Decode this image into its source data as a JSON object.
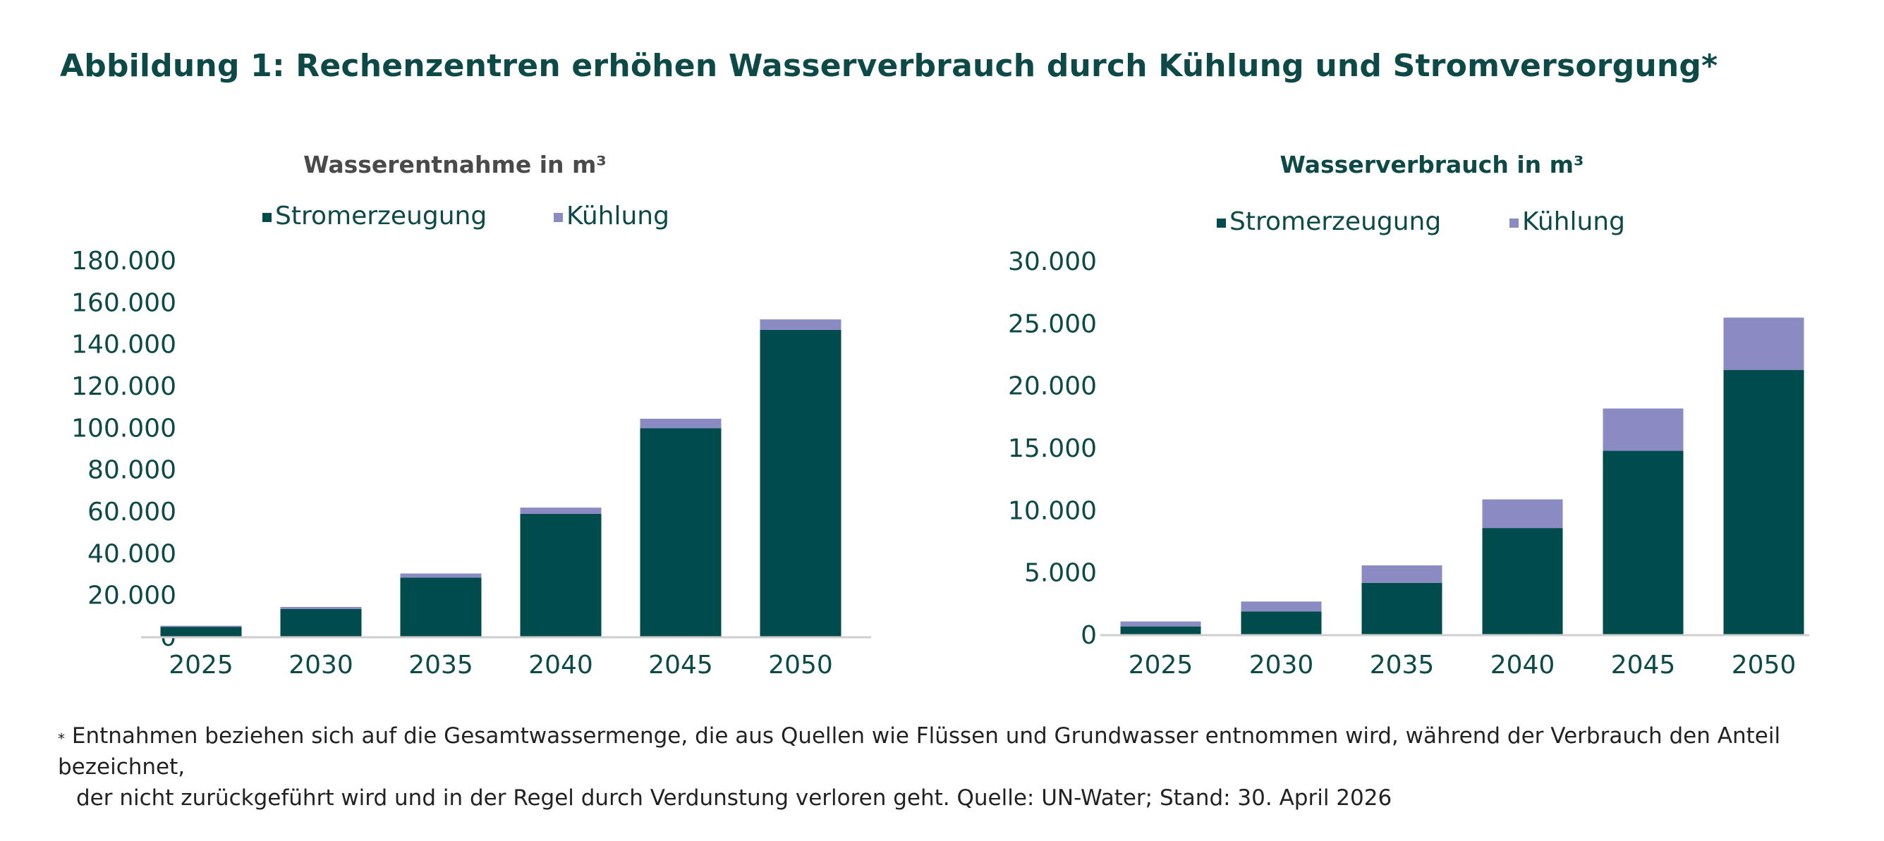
{
  "header": {
    "title": "Abbildung 1: Rechenzentren erhöhen Wasserverbrauch durch Kühlung und Stromversorgung*"
  },
  "chart_data": [
    {
      "type": "bar",
      "stacked": true,
      "title": "Wasserentnahme in m³",
      "title_color": "#4a4a4a",
      "categories": [
        "2025",
        "2030",
        "2035",
        "2040",
        "2045",
        "2050"
      ],
      "series": [
        {
          "name": "Stromerzeugung",
          "color": "#004b4b",
          "values": [
            5000,
            13500,
            28500,
            59000,
            100000,
            147000
          ]
        },
        {
          "name": "Kühlung",
          "color": "#8a8bc3",
          "values": [
            500,
            1000,
            2000,
            3000,
            4500,
            5000
          ]
        }
      ],
      "ylim": [
        0,
        180000
      ],
      "yticks": [
        0,
        20000,
        40000,
        60000,
        80000,
        100000,
        120000,
        140000,
        160000,
        180000
      ],
      "ytick_labels": [
        "0",
        "20.000",
        "40.000",
        "60.000",
        "80.000",
        "100.000",
        "120.000",
        "140.000",
        "160.000",
        "180.000"
      ],
      "grid": false,
      "legend": "top",
      "xlabel": "",
      "ylabel": ""
    },
    {
      "type": "bar",
      "stacked": true,
      "title": "Wasserverbrauch in m³",
      "title_color": "#0d4a47",
      "categories": [
        "2025",
        "2030",
        "2035",
        "2040",
        "2045",
        "2050"
      ],
      "series": [
        {
          "name": "Stromerzeugung",
          "color": "#004b4b",
          "values": [
            700,
            1900,
            4200,
            8600,
            14800,
            21300
          ]
        },
        {
          "name": "Kühlung",
          "color": "#8a8bc3",
          "values": [
            400,
            800,
            1400,
            2300,
            3400,
            4200
          ]
        }
      ],
      "ylim": [
        0,
        30000
      ],
      "yticks": [
        0,
        5000,
        10000,
        15000,
        20000,
        25000,
        30000
      ],
      "ytick_labels": [
        "0",
        "5.000",
        "10.000",
        "15.000",
        "20.000",
        "25.000",
        "30.000"
      ],
      "grid": false,
      "legend": "top",
      "xlabel": "",
      "ylabel": ""
    }
  ],
  "footnote": {
    "marker": "*",
    "line1": "Entnahmen beziehen sich auf die Gesamtwassermenge, die aus Quellen wie Flüssen und Grundwasser entnommen wird, während der Verbrauch den Anteil bezeichnet,",
    "line2": "der nicht zurückgeführt wird und in der Regel durch Verdunstung verloren geht. Quelle: UN-Water; Stand: 30. April 2026"
  }
}
